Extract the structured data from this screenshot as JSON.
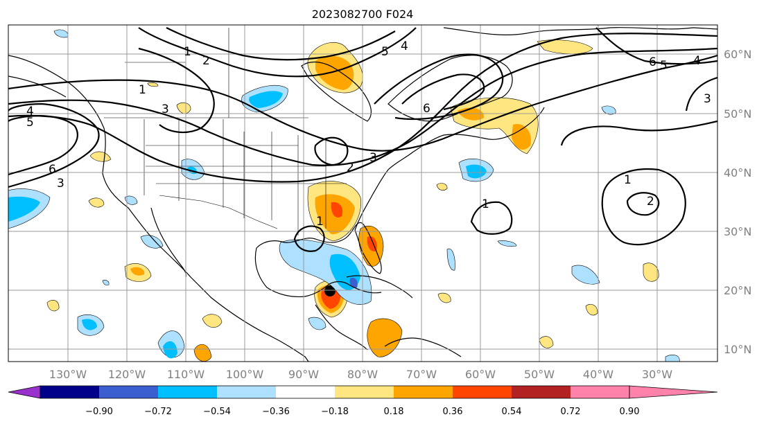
{
  "title": "2023082700 F024",
  "lon_labels": [
    "130°W",
    "120°W",
    "110°W",
    "100°W",
    "90°W",
    "80°W",
    "70°W",
    "60°W",
    "50°W",
    "40°W",
    "30°W"
  ],
  "lat_labels": [
    "60°N",
    "50°N",
    "40°N",
    "30°N",
    "20°N",
    "10°N"
  ],
  "colorbar": {
    "ticks": [
      "−0.90",
      "−0.72",
      "−0.54",
      "−0.36",
      "−0.18",
      "0.18",
      "0.36",
      "0.54",
      "0.72",
      "0.90"
    ],
    "colors": [
      "#9932cc",
      "#00008b",
      "#3c5fd0",
      "#00bfff",
      "#aee0ff",
      "#ffffff",
      "#ffe680",
      "#ffa500",
      "#ff4500",
      "#b22222",
      "#ff82ab"
    ]
  },
  "contour_labels": [
    "4",
    "5",
    "6",
    "3",
    "1",
    "2",
    "3",
    "2",
    "1",
    "3",
    "6",
    "5",
    "4",
    "6",
    "5",
    "4",
    "3",
    "1",
    "1",
    "2",
    "1"
  ],
  "colors": {
    "pos_light": "#ffe680",
    "pos_mid": "#ffa500",
    "pos_strong": "#ff4500",
    "neg_light": "#aee0ff",
    "neg_mid": "#00bfff",
    "neg_strong": "#3c5fd0"
  }
}
